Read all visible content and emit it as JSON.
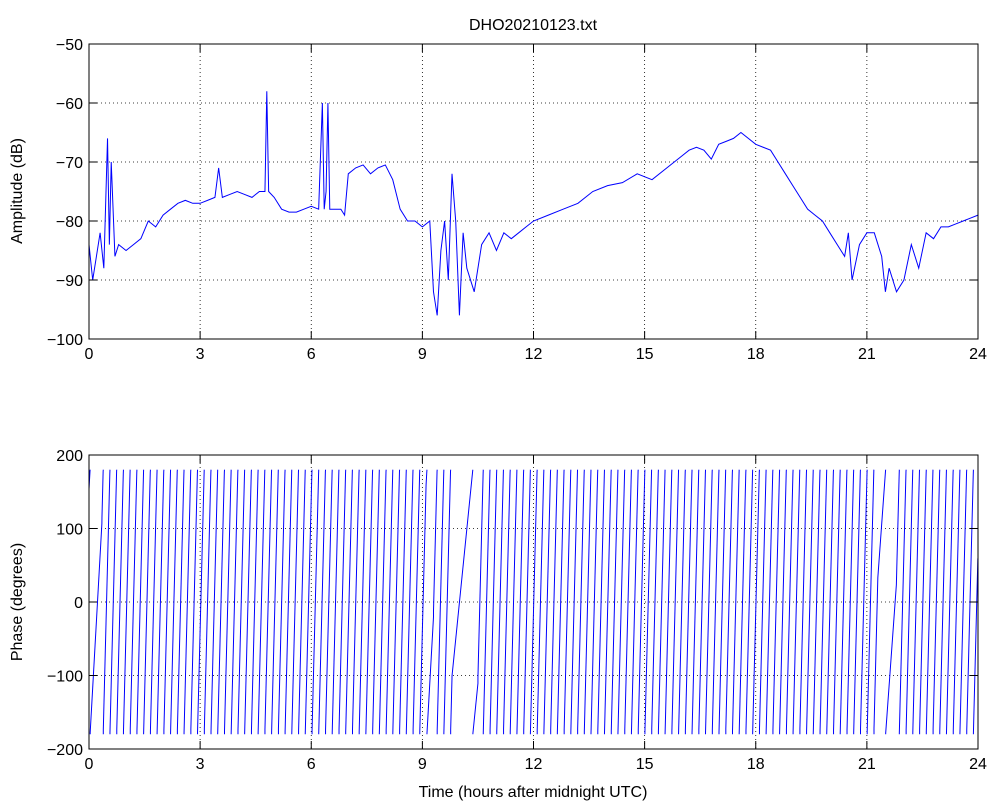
{
  "chart_data": [
    {
      "type": "line",
      "title": "DHO20210123.txt",
      "xlabel": "",
      "ylabel": "Amplitude (dB)",
      "xlim": [
        0,
        24
      ],
      "ylim": [
        -100,
        -50
      ],
      "xticks": [
        0,
        3,
        6,
        9,
        12,
        15,
        18,
        21,
        24
      ],
      "xtick_labels": [
        "0",
        "3",
        "6",
        "9",
        "12",
        "15",
        "18",
        "21",
        "24"
      ],
      "yticks": [
        -100,
        -90,
        -80,
        -70,
        -60,
        -50
      ],
      "ytick_labels": [
        "−100",
        "−90",
        "−80",
        "−70",
        "−60",
        "−50"
      ],
      "grid": true,
      "line_color": "#0000ff",
      "series": [
        {
          "x": [
            0,
            0.1,
            0.2,
            0.3,
            0.4,
            0.5,
            0.55,
            0.6,
            0.7,
            0.8,
            1.0,
            1.2,
            1.4,
            1.6,
            1.8,
            2.0,
            2.2,
            2.4,
            2.6,
            2.8,
            3.0,
            3.2,
            3.4,
            3.5,
            3.6,
            3.8,
            4.0,
            4.2,
            4.4,
            4.6,
            4.75,
            4.8,
            4.85,
            5.0,
            5.2,
            5.4,
            5.6,
            5.8,
            6.0,
            6.2,
            6.3,
            6.35,
            6.4,
            6.45,
            6.5,
            6.6,
            6.8,
            6.9,
            7.0,
            7.2,
            7.4,
            7.6,
            7.8,
            8.0,
            8.2,
            8.4,
            8.6,
            8.8,
            9.0,
            9.2,
            9.3,
            9.4,
            9.5,
            9.6,
            9.7,
            9.8,
            9.9,
            10.0,
            10.1,
            10.2,
            10.4,
            10.6,
            10.8,
            11.0,
            11.2,
            11.4,
            11.6,
            11.8,
            12.0,
            12.4,
            12.8,
            13.2,
            13.6,
            14.0,
            14.4,
            14.8,
            15.2,
            15.6,
            16.0,
            16.2,
            16.4,
            16.6,
            16.8,
            17.0,
            17.2,
            17.4,
            17.6,
            17.8,
            18.0,
            18.2,
            18.4,
            18.6,
            18.8,
            19.0,
            19.2,
            19.4,
            19.6,
            19.8,
            20.0,
            20.2,
            20.4,
            20.5,
            20.6,
            20.8,
            21.0,
            21.2,
            21.4,
            21.5,
            21.6,
            21.8,
            22.0,
            22.2,
            22.4,
            22.6,
            22.8,
            23.0,
            23.2,
            23.4,
            23.6,
            23.8,
            24.0
          ],
          "y": [
            -84,
            -90,
            -86,
            -82,
            -88,
            -66,
            -84,
            -70,
            -86,
            -84,
            -85,
            -84,
            -83,
            -80,
            -81,
            -79,
            -78,
            -77,
            -76.5,
            -77,
            -77,
            -76.5,
            -76,
            -71,
            -76,
            -75.5,
            -75,
            -75.5,
            -76,
            -75,
            -75,
            -58,
            -75,
            -76,
            -78,
            -78.5,
            -78.5,
            -78,
            -77.5,
            -78,
            -60,
            -78,
            -75,
            -60,
            -78,
            -78,
            -78,
            -79,
            -72,
            -71,
            -70.5,
            -72,
            -71,
            -70.5,
            -73,
            -78,
            -80,
            -80,
            -81,
            -80,
            -92,
            -96,
            -85,
            -80,
            -90,
            -72,
            -80,
            -96,
            -82,
            -88,
            -92,
            -84,
            -82,
            -85,
            -82,
            -83,
            -82,
            -81,
            -80,
            -79,
            -78,
            -77,
            -75,
            -74,
            -73.5,
            -72,
            -73,
            -71,
            -69,
            -68,
            -67.5,
            -68,
            -69.5,
            -67,
            -66.5,
            -66,
            -65,
            -66,
            -67,
            -67.5,
            -68,
            -70,
            -72,
            -74,
            -76,
            -78,
            -79,
            -80,
            -82,
            -84,
            -86,
            -82,
            -90,
            -84,
            -82,
            -82,
            -86,
            -92,
            -88,
            -92,
            -90,
            -84,
            -88,
            -82,
            -83,
            -81,
            -81,
            -80.5,
            -80,
            -79.5,
            -79
          ]
        }
      ]
    },
    {
      "type": "line",
      "title": "",
      "xlabel": "Time (hours after midnight UTC)",
      "ylabel": "Phase (degrees)",
      "xlim": [
        0,
        24
      ],
      "ylim": [
        -200,
        200
      ],
      "xticks": [
        0,
        3,
        6,
        9,
        12,
        15,
        18,
        21,
        24
      ],
      "xtick_labels": [
        "0",
        "3",
        "6",
        "9",
        "12",
        "15",
        "18",
        "21",
        "24"
      ],
      "yticks": [
        -200,
        -100,
        0,
        100,
        200
      ],
      "ytick_labels": [
        "−200",
        "−100",
        "0",
        "100",
        "200"
      ],
      "grid": true,
      "line_color": "#0000ff",
      "series": [
        {
          "wrap_range": [
            -180,
            180
          ],
          "segments": [
            {
              "x_start": 0.0,
              "x_end": 0.35,
              "slope_deg_per_hour": 900
            },
            {
              "x_start": 0.35,
              "x_end": 9.1,
              "slope_deg_per_hour": 1980
            },
            {
              "x_start": 9.1,
              "x_end": 9.3,
              "slope_deg_per_hour": 900
            },
            {
              "x_start": 9.3,
              "x_end": 9.8,
              "slope_deg_per_hour": 1980
            },
            {
              "x_start": 9.8,
              "x_end": 10.5,
              "slope_deg_per_hour": 500
            },
            {
              "x_start": 10.5,
              "x_end": 21.3,
              "slope_deg_per_hour": 1980
            },
            {
              "x_start": 21.3,
              "x_end": 21.8,
              "slope_deg_per_hour": 700
            },
            {
              "x_start": 21.8,
              "x_end": 24.0,
              "slope_deg_per_hour": 1980
            }
          ]
        }
      ]
    }
  ]
}
